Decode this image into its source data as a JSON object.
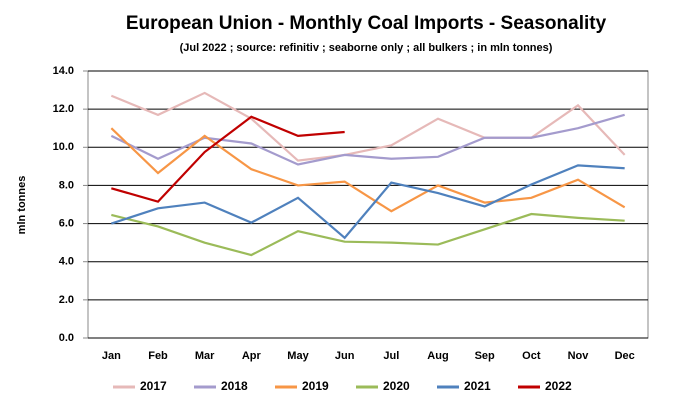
{
  "chart_data": {
    "type": "line",
    "title": "European Union - Monthly Coal Imports - Seasonality",
    "subtitle": "(Jul 2022 ; source: refinitiv ; seaborne only ; all bulkers ; in mln tonnes)",
    "y_label": "mln tonnes",
    "categories": [
      "Jan",
      "Feb",
      "Mar",
      "Apr",
      "May",
      "Jun",
      "Jul",
      "Aug",
      "Sep",
      "Oct",
      "Nov",
      "Dec"
    ],
    "series": [
      {
        "name": "2017",
        "color": "#e6b9b8",
        "values": [
          12.7,
          11.7,
          12.85,
          11.5,
          9.3,
          9.6,
          10.1,
          11.5,
          10.5,
          10.5,
          12.2,
          9.6
        ]
      },
      {
        "name": "2018",
        "color": "#a49bcd",
        "values": [
          10.6,
          9.4,
          10.5,
          10.2,
          9.1,
          9.6,
          9.4,
          9.5,
          10.5,
          10.5,
          11.0,
          11.7
        ]
      },
      {
        "name": "2019",
        "color": "#f79646",
        "values": [
          11.0,
          8.65,
          10.6,
          8.85,
          8.0,
          8.2,
          6.65,
          8.0,
          7.1,
          7.35,
          8.3,
          6.85
        ]
      },
      {
        "name": "2020",
        "color": "#9bbb59",
        "values": [
          6.45,
          5.85,
          5.0,
          4.35,
          5.6,
          5.05,
          5.0,
          4.9,
          5.7,
          6.5,
          6.3,
          6.15
        ]
      },
      {
        "name": "2021",
        "color": "#4f81bd",
        "values": [
          6.0,
          6.8,
          7.1,
          6.05,
          7.35,
          5.25,
          8.15,
          7.6,
          6.9,
          8.05,
          9.05,
          8.9
        ]
      },
      {
        "name": "2022",
        "color": "#c00000",
        "values": [
          7.85,
          7.15,
          9.75,
          11.6,
          10.6,
          10.8,
          null,
          null,
          null,
          null,
          null,
          null
        ]
      }
    ],
    "ylim": [
      0,
      14
    ],
    "yticks": [
      {
        "value": 0,
        "label": "0.0"
      },
      {
        "value": 2,
        "label": "2.0"
      },
      {
        "value": 4,
        "label": "4.0"
      },
      {
        "value": 6,
        "label": "6.0"
      },
      {
        "value": 8,
        "label": "8.0"
      },
      {
        "value": 10,
        "label": "10.0"
      },
      {
        "value": 12,
        "label": "12.0"
      },
      {
        "value": 14,
        "label": "14.0"
      }
    ],
    "grid": true,
    "legend": "bottom"
  }
}
